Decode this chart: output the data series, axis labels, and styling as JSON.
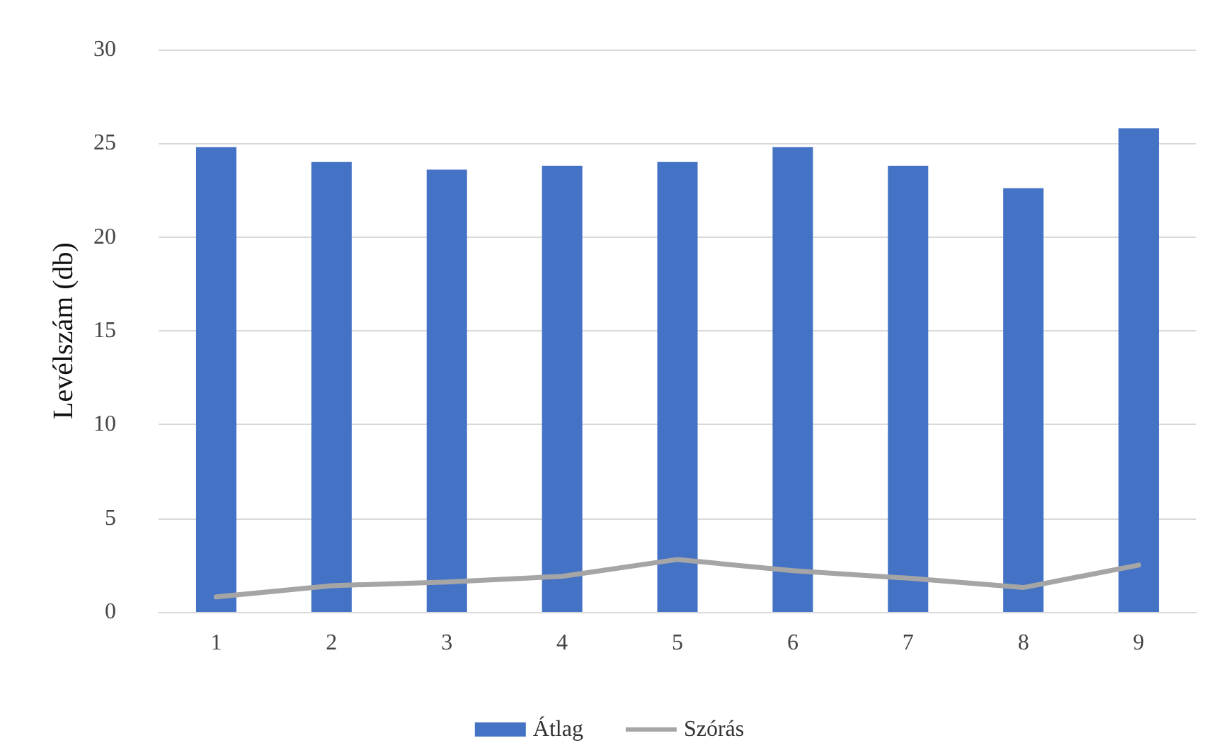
{
  "chart_data": {
    "type": "bar",
    "ylabel": "Levélszám (db)",
    "categories": [
      "1",
      "2",
      "3",
      "4",
      "5",
      "6",
      "7",
      "8",
      "9"
    ],
    "series": [
      {
        "name": "Átlag",
        "color": "#4472c4",
        "values": [
          24.8,
          24.0,
          23.6,
          23.8,
          24.0,
          24.8,
          23.8,
          22.6,
          25.8
        ]
      },
      {
        "name": "Szórás",
        "type": "line",
        "color": "#a5a5a5",
        "values": [
          0.8,
          1.4,
          1.6,
          1.9,
          2.8,
          2.2,
          1.8,
          1.3,
          2.5
        ]
      }
    ],
    "ylim": [
      0,
      30
    ],
    "yticks": [
      0,
      5,
      10,
      15,
      20,
      25,
      30
    ],
    "grid": "y",
    "legend": "bottom",
    "marker": "none"
  }
}
